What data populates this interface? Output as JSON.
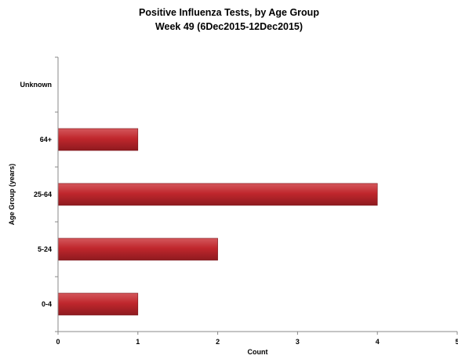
{
  "chart_data": {
    "type": "bar",
    "orientation": "horizontal",
    "title": "Positive Influenza Tests, by Age Group",
    "subtitle": "Week 49  (6Dec2015-12Dec2015)",
    "xlabel": "Count",
    "ylabel": "Age Group (years)",
    "categories": [
      "0-4",
      "5-24",
      "25-64",
      "64+",
      "Unknown"
    ],
    "values": [
      1,
      2,
      4,
      1,
      0
    ],
    "xlim": [
      0,
      5
    ],
    "xticks": [
      "0",
      "1",
      "2",
      "3",
      "4",
      "5"
    ],
    "grid": false,
    "legend": "none",
    "bar_color": "#c0272d"
  }
}
